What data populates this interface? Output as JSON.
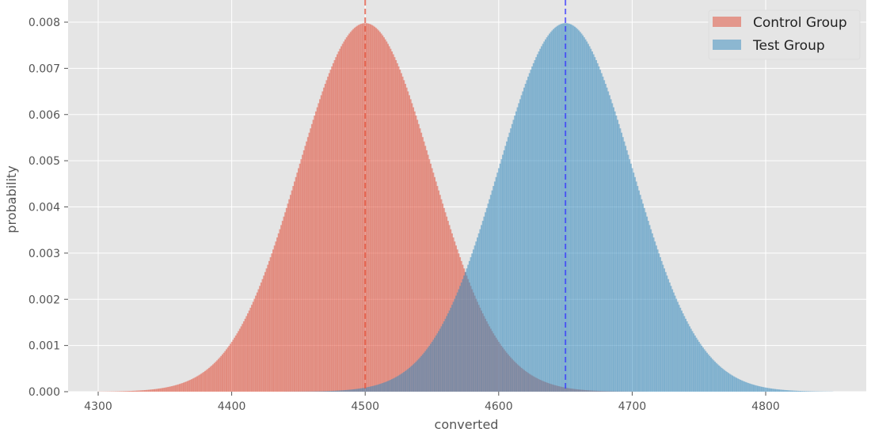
{
  "chart_data": {
    "type": "bar",
    "title": "",
    "xlabel": "converted",
    "ylabel": "probability",
    "xlim": [
      4277,
      4875
    ],
    "ylim": [
      0,
      0.008
    ],
    "xticks": [
      4300,
      4400,
      4500,
      4600,
      4700,
      4800
    ],
    "xtick_labels": [
      "4300",
      "4400",
      "4500",
      "4600",
      "4700",
      "4800"
    ],
    "yticks": [
      0,
      0.001,
      0.002,
      0.003,
      0.004,
      0.005,
      0.006,
      0.007,
      0.008
    ],
    "ytick_labels": [
      "0.000",
      "0.001",
      "0.002",
      "0.003",
      "0.004",
      "0.005",
      "0.006",
      "0.007",
      "0.008"
    ],
    "grid": true,
    "legend_position": "top-right",
    "series": [
      {
        "name": "Control Group",
        "distribution": "normal-approx binomial pmf",
        "mean": 4500,
        "std": 50,
        "x_range": [
          4300,
          4850
        ],
        "color": "#E24A33",
        "alpha": 0.5,
        "mean_line_color": "#E24A33"
      },
      {
        "name": "Test Group",
        "distribution": "normal-approx binomial pmf",
        "mean": 4650,
        "std": 50,
        "x_range": [
          4300,
          4850
        ],
        "color": "#348ABD",
        "alpha": 0.5,
        "mean_line_color": "#3333FF"
      }
    ]
  }
}
